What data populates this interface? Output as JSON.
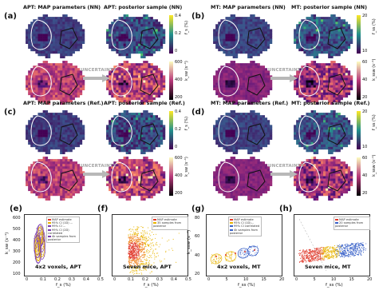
{
  "panels_top": [
    {
      "label": "(a)",
      "titles": [
        "APT: MAP parameters (NN)",
        "APT: posterior sample (NN)"
      ],
      "cbar_top": {
        "ticks": [
          "0.4",
          "0.2",
          "0"
        ],
        "unit": "f_s (%)"
      },
      "cbar_bot": {
        "ticks": [
          "600",
          "400",
          "200"
        ],
        "unit": "k_sw (s⁻¹)"
      }
    },
    {
      "label": "(b)",
      "titles": [
        "MT: MAP parameters (NN)",
        "MT: posterior sample (NN)"
      ],
      "cbar_top": {
        "ticks": [
          "20",
          "10"
        ],
        "unit": "f_ss (%)"
      },
      "cbar_bot": {
        "ticks": [
          "60",
          "40",
          "20"
        ],
        "unit": "k_ssw (s⁻¹)"
      }
    },
    {
      "label": "(c)",
      "titles": [
        "APT: MAP parameters (Ref.)",
        "APT: posterior sample (Ref.)"
      ],
      "cbar_top": {
        "ticks": [
          "0.4",
          "0.2",
          "0"
        ],
        "unit": "f_s (%)"
      },
      "cbar_bot": {
        "ticks": [
          "600",
          "400",
          "200"
        ],
        "unit": "k_sw (s⁻¹)"
      }
    },
    {
      "label": "(d)",
      "titles": [
        "MT: MAP parameters (Ref.)",
        "MT: posterior sample (Ref.)"
      ],
      "cbar_top": {
        "ticks": [
          "20",
          "10"
        ],
        "unit": "f_ss (%)"
      },
      "cbar_bot": {
        "ticks": [
          "60",
          "40",
          "20"
        ],
        "unit": "k_ssw (s⁻¹)"
      }
    }
  ],
  "uncertainty_label": "UNCERTAINTY",
  "scatter": [
    {
      "label": "(e)",
      "caption": "4x2 voxels, APT",
      "xlabel": "f_s (%)",
      "ylabel": "k_sw (s⁻¹)",
      "xticks": [
        "0",
        "0.1",
        "0.2",
        "0.3",
        "0.4",
        "0.5"
      ],
      "yticks": [
        "600",
        "500",
        "400",
        "300",
        "200",
        "100"
      ],
      "legend": [
        "MAP estimate",
        "95% CI (1D) ...",
        "99% CI ...",
        "99% CI (2D) correlated",
        "4k samples from posterior"
      ],
      "colors": [
        "#e03a2c",
        "#e8b400",
        "#7a3cb0"
      ]
    },
    {
      "label": "(f)",
      "caption": "Seven mice, APT",
      "xlabel": "f_s (%)",
      "ylabel": "",
      "xticks": [
        "0",
        "0.1",
        "0.2",
        "0.3",
        "0.4",
        "0.5"
      ],
      "yticks": [],
      "legend": [
        "MAP estimate",
        "35 samples from posterior"
      ],
      "colors": [
        "#e03a2c",
        "#e8b400"
      ]
    },
    {
      "label": "(g)",
      "caption": "4x2 voxels, MT",
      "xlabel": "f_ss (%)",
      "ylabel": "k_ssw (s⁻¹)",
      "xticks": [
        "0",
        "5",
        "10",
        "15",
        "20"
      ],
      "yticks": [
        "80",
        "60",
        "40",
        "20"
      ],
      "legend": [
        "MAP estimate",
        "95% CI (1D)...",
        "99% CI correlated",
        "4k samples from posterior"
      ],
      "colors": [
        "#e03a2c",
        "#e8b400",
        "#3a62c8"
      ]
    },
    {
      "label": "(h)",
      "caption": "Seven mice, MT",
      "xlabel": "f_ss (%)",
      "ylabel": "",
      "xticks": [
        "0",
        "5",
        "10",
        "15",
        "20"
      ],
      "yticks": [],
      "legend": [
        "MAP estimate",
        "20 samples from posterior"
      ],
      "colors": [
        "#e03a2c",
        "#3a62c8"
      ]
    }
  ]
}
